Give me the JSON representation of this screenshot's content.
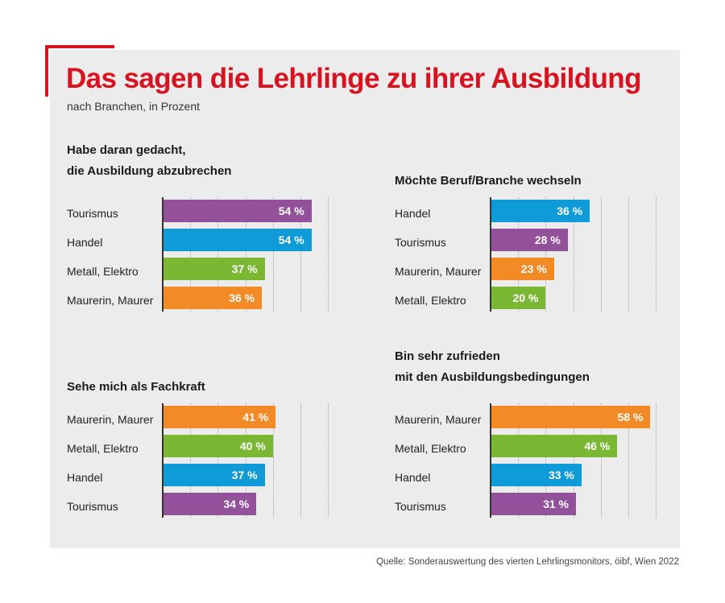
{
  "title": "Das sagen die Lehrlinge zu ihrer Ausbildung",
  "subtitle": "nach Branchen, in Prozent",
  "source": "Quelle: Sonderauswertung des vierten Lehrlingsmonitors, öibf, Wien 2022",
  "colors": {
    "title": "#d9121f",
    "Tourismus": "#93509b",
    "Handel": "#0f9bd7",
    "Metall, Elektro": "#7ab833",
    "Maurerin, Maurer": "#f28a26"
  },
  "chart_data": [
    {
      "type": "bar",
      "orientation": "horizontal",
      "title_lines": [
        "Habe daran gedacht,",
        "die Ausbildung abzubrechen"
      ],
      "categories": [
        "Tourismus",
        "Handel",
        "Metall, Elektro",
        "Maurerin, Maurer"
      ],
      "values": [
        54,
        54,
        37,
        36
      ],
      "labels": [
        "54 %",
        "54 %",
        "37 %",
        "36 %"
      ],
      "xlim": [
        0,
        60
      ],
      "unit": "%"
    },
    {
      "type": "bar",
      "orientation": "horizontal",
      "title_lines": [
        "Möchte Beruf/Branche wechseln"
      ],
      "categories": [
        "Handel",
        "Tourismus",
        "Maurerin, Maurer",
        "Metall, Elektro"
      ],
      "values": [
        36,
        28,
        23,
        20
      ],
      "labels": [
        "36 %",
        "28 %",
        "23 %",
        "20 %"
      ],
      "xlim": [
        0,
        60
      ],
      "unit": "%"
    },
    {
      "type": "bar",
      "orientation": "horizontal",
      "title_lines": [
        "Sehe mich als Fachkraft"
      ],
      "categories": [
        "Maurerin, Maurer",
        "Metall, Elektro",
        "Handel",
        "Tourismus"
      ],
      "values": [
        41,
        40,
        37,
        34
      ],
      "labels": [
        "41 %",
        "40 %",
        "37 %",
        "34 %"
      ],
      "xlim": [
        0,
        60
      ],
      "unit": "%"
    },
    {
      "type": "bar",
      "orientation": "horizontal",
      "title_lines": [
        "Bin sehr zufrieden",
        "mit den Ausbildungsbedingungen"
      ],
      "categories": [
        "Maurerin, Maurer",
        "Metall, Elektro",
        "Handel",
        "Tourismus"
      ],
      "values": [
        58,
        46,
        33,
        31
      ],
      "labels": [
        "58 %",
        "46 %",
        "33 %",
        "31 %"
      ],
      "xlim": [
        0,
        60
      ],
      "unit": "%"
    }
  ]
}
